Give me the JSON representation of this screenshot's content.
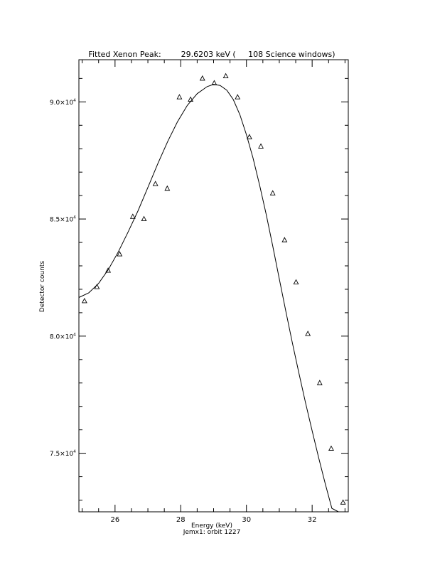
{
  "chart_data": {
    "type": "scatter",
    "title": "Fitted Xenon Peak:        29.6203 keV (     108 Science windows)",
    "xlabel": "Energy (keV)",
    "subtitle": "Jemx1: orbit 1227",
    "ylabel": "Detector counts",
    "xlim": [
      24.9,
      33.1
    ],
    "ylim": [
      72500,
      91800
    ],
    "x_ticks": [
      26,
      28,
      30,
      32
    ],
    "x_tick_labels": [
      "26",
      "28",
      "30",
      "32"
    ],
    "y_ticks": [
      75000,
      80000,
      85000,
      90000
    ],
    "y_tick_labels": [
      {
        "mant": "7.5×10",
        "exp": "4"
      },
      {
        "mant": "8.0×10",
        "exp": "4"
      },
      {
        "mant": "8.5×10",
        "exp": "4"
      },
      {
        "mant": "9.0×10",
        "exp": "4"
      }
    ],
    "series": [
      {
        "marker": "triangle",
        "x": [
          25.07,
          25.45,
          25.79,
          26.14,
          26.54,
          26.88,
          27.23,
          27.59,
          27.96,
          28.3,
          28.66,
          29.02,
          29.37,
          29.73,
          30.09,
          30.44,
          30.8,
          31.16,
          31.51,
          31.87,
          32.23,
          32.58,
          32.94
        ],
        "y": [
          81500,
          82100,
          82800,
          83500,
          85100,
          85000,
          86500,
          86300,
          90200,
          90100,
          91000,
          90800,
          91100,
          90200,
          88500,
          88100,
          86100,
          84100,
          82300,
          80100,
          78000,
          75200,
          72900
        ]
      },
      {
        "type": "line",
        "x": [
          24.9,
          25.2,
          25.5,
          25.8,
          26.1,
          26.4,
          26.7,
          27.0,
          27.3,
          27.6,
          27.9,
          28.2,
          28.5,
          28.8,
          29.0,
          29.2,
          29.4,
          29.6,
          29.8,
          30.0,
          30.2,
          30.4,
          30.6,
          30.8,
          31.0,
          31.2,
          31.4,
          31.6,
          31.8,
          32.0,
          32.2,
          32.4,
          32.6,
          32.8,
          32.95
        ],
        "y": [
          81650,
          81850,
          82250,
          82850,
          83600,
          84450,
          85350,
          86350,
          87350,
          88300,
          89150,
          89850,
          90350,
          90650,
          90750,
          90700,
          90500,
          90100,
          89450,
          88600,
          87600,
          86450,
          85200,
          83850,
          82450,
          81050,
          79700,
          78400,
          77150,
          75950,
          74800,
          73700,
          72650,
          71650,
          71000
        ]
      }
    ],
    "grid": false,
    "legend": false
  }
}
